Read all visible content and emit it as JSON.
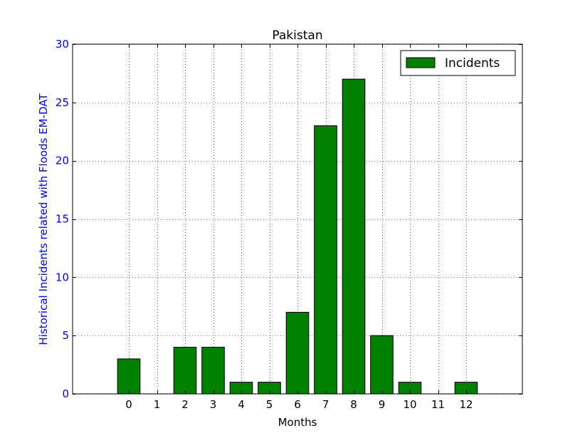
{
  "chart_data": {
    "type": "bar",
    "title": "Pakistan",
    "xlabel": "Months",
    "ylabel": "Historical Incidents related with Floods EM-DAT",
    "categories": [
      "0",
      "1",
      "2",
      "3",
      "4",
      "5",
      "6",
      "7",
      "8",
      "9",
      "10",
      "11",
      "12"
    ],
    "series": [
      {
        "name": "Incidents",
        "values": [
          3,
          0,
          4,
          4,
          1,
          1,
          7,
          23,
          27,
          5,
          1,
          0,
          1
        ]
      }
    ],
    "ylim": [
      0,
      30
    ],
    "yticks": [
      "0",
      "5",
      "10",
      "15",
      "20",
      "25",
      "30"
    ],
    "xlim": [
      -2,
      14
    ],
    "grid": true,
    "legend_position": "top-right",
    "colors": {
      "bar_fill": "#008000",
      "bar_edge": "#000000",
      "ytick_text": "#0000ff",
      "ylabel_text": "#0000ff",
      "grid": "#000000"
    }
  }
}
